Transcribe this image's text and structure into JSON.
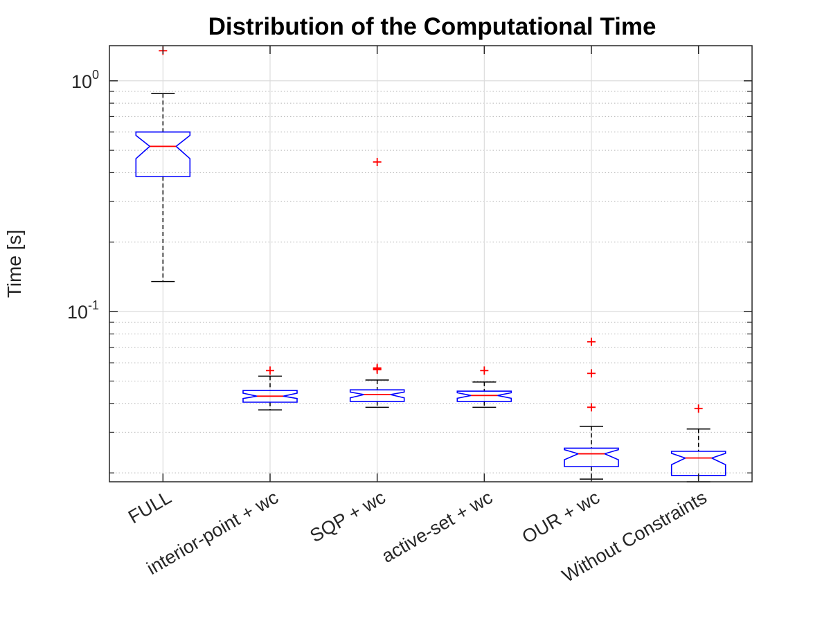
{
  "chart_data": {
    "type": "box",
    "title": "Distribution of the Computational Time",
    "xlabel": "",
    "ylabel": "Time [s]",
    "yscale": "log",
    "ylim": [
      0.0183,
      1.42
    ],
    "yticks": [
      {
        "value": 0.1,
        "base": "10",
        "exp": "-1"
      },
      {
        "value": 1,
        "base": "10",
        "exp": "0"
      }
    ],
    "grid": true,
    "minor_grid": true,
    "notched": true,
    "categories": [
      "FULL",
      "interior-point + wc",
      "SQP + wc",
      "active-set + wc",
      "OUR + wc",
      "Without Constraints"
    ],
    "boxes": [
      {
        "category": "FULL",
        "whisker_low": 0.135,
        "q1": 0.385,
        "median": 0.52,
        "q3": 0.6,
        "whisker_high": 0.88,
        "notch_low": 0.46,
        "notch_high": 0.58,
        "outliers": [
          1.35
        ]
      },
      {
        "category": "interior-point + wc",
        "whisker_low": 0.0375,
        "q1": 0.0405,
        "median": 0.043,
        "q3": 0.0455,
        "whisker_high": 0.0525,
        "notch_low": 0.042,
        "notch_high": 0.0443,
        "outliers": [
          0.0555
        ]
      },
      {
        "category": "SQP + wc",
        "whisker_low": 0.0385,
        "q1": 0.0408,
        "median": 0.0437,
        "q3": 0.0458,
        "whisker_high": 0.0505,
        "notch_low": 0.0423,
        "notch_high": 0.0448,
        "outliers": [
          0.445,
          0.056,
          0.0565,
          0.057
        ]
      },
      {
        "category": "active-set + wc",
        "whisker_low": 0.0385,
        "q1": 0.0408,
        "median": 0.0433,
        "q3": 0.0452,
        "whisker_high": 0.0495,
        "notch_low": 0.0421,
        "notch_high": 0.0445,
        "outliers": [
          0.0555
        ]
      },
      {
        "category": "OUR + wc",
        "whisker_low": 0.0188,
        "q1": 0.0213,
        "median": 0.0242,
        "q3": 0.0256,
        "whisker_high": 0.0318,
        "notch_low": 0.0228,
        "notch_high": 0.0252,
        "outliers": [
          0.074,
          0.054,
          0.0385
        ]
      },
      {
        "category": "Without Constraints",
        "whisker_low": 0.0183,
        "q1": 0.0195,
        "median": 0.0232,
        "q3": 0.0248,
        "whisker_high": 0.031,
        "notch_low": 0.0217,
        "notch_high": 0.0243,
        "outliers": [
          0.038
        ]
      }
    ],
    "colors": {
      "box": "#0000ff",
      "median": "#ff0000",
      "outlier": "#ff0000",
      "whisker": "#000000",
      "axis": "#262626",
      "grid": "#dcdcdc"
    }
  }
}
